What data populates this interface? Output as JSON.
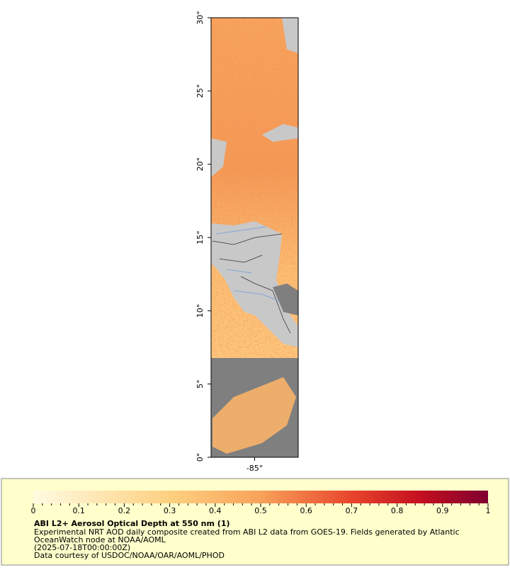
{
  "map_data": {
    "ylim": [
      0,
      30
    ],
    "yticks": [
      {
        "value": 0,
        "label": "0°"
      },
      {
        "value": 5,
        "label": "5°"
      },
      {
        "value": 10,
        "label": "10°"
      },
      {
        "value": 15,
        "label": "15°"
      },
      {
        "value": 20,
        "label": "20°"
      },
      {
        "value": 25,
        "label": "25°"
      },
      {
        "value": 30,
        "label": "30°"
      }
    ],
    "xlim": [
      -88,
      -82
    ],
    "xticks": [
      {
        "value": -85,
        "label": "-85°"
      }
    ]
  },
  "colorbar": {
    "range": [
      0,
      1
    ],
    "ticks": [
      0,
      0.1,
      0.2,
      0.3,
      0.4,
      0.5,
      0.6,
      0.7,
      0.8,
      0.9,
      1
    ]
  },
  "legend": {
    "title": "ABI L2+ Aerosol Optical Depth at 550 nm (1)",
    "lines": [
      "Experimental NRT AOD daily composite created from ABI L2 data from GOES-19. Fields generated by Atlantic",
      "OceanWatch node at NOAA/AOML",
      "(2025-07-18T00:00:00Z)",
      "Data courtesy of USDOC/NOAA/OAR/AOML/PHOD"
    ]
  }
}
